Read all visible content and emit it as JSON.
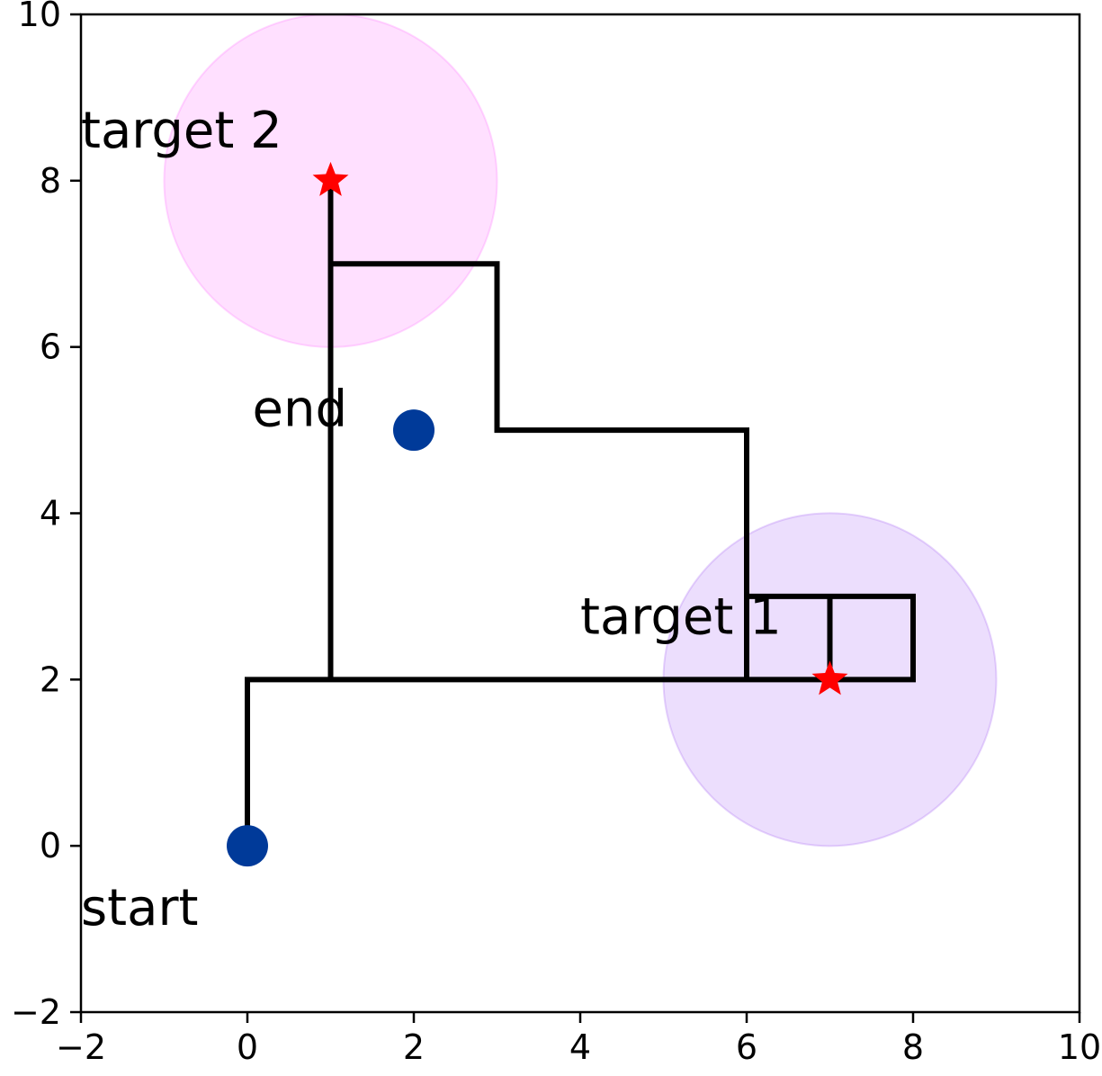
{
  "chart_data": {
    "type": "scatter",
    "title": "",
    "xlabel": "",
    "ylabel": "",
    "xlim": [
      -2,
      10
    ],
    "ylim": [
      -2,
      10
    ],
    "x_ticks": [
      -2,
      0,
      2,
      4,
      6,
      8,
      10
    ],
    "y_ticks": [
      -2,
      0,
      2,
      4,
      6,
      8,
      10
    ],
    "x_tick_labels": [
      "−2",
      "0",
      "2",
      "4",
      "6",
      "8",
      "10"
    ],
    "y_tick_labels": [
      "−2",
      "0",
      "2",
      "4",
      "6",
      "8",
      "10"
    ],
    "grid": false,
    "legend": "none",
    "regions": [
      {
        "cx": 1,
        "cy": 8,
        "r": 2,
        "color": "#ff66ff"
      },
      {
        "cx": 7,
        "cy": 2,
        "r": 2,
        "color": "#9f5cf5"
      }
    ],
    "path": {
      "color": "#000000",
      "x": [
        0,
        0,
        1,
        1,
        3,
        3,
        6,
        6,
        8,
        8,
        7,
        7,
        6,
        6,
        7,
        7,
        1,
        1
      ],
      "y": [
        0,
        2,
        2,
        7,
        7,
        5,
        5,
        2,
        2,
        3,
        3,
        2,
        2,
        3,
        3,
        2,
        2,
        8
      ]
    },
    "points": [
      {
        "x": 0,
        "y": 0,
        "label": "start",
        "color": "#003a99",
        "marker": "circle"
      },
      {
        "x": 2,
        "y": 5,
        "label": "end",
        "color": "#003a99",
        "marker": "circle"
      }
    ],
    "targets": [
      {
        "x": 7,
        "y": 2,
        "label": "target 1",
        "color": "#ff0000",
        "marker": "star"
      },
      {
        "x": 1,
        "y": 8,
        "label": "target 2",
        "color": "#ff0000",
        "marker": "star"
      }
    ],
    "annotations": [
      {
        "text": "start",
        "x": -2,
        "y": -0.95,
        "anchor": "start"
      },
      {
        "text": "end",
        "x": 1.2,
        "y": 5.05,
        "anchor": "end"
      },
      {
        "text": "target 1",
        "x": 4,
        "y": 2.55,
        "anchor": "start"
      },
      {
        "text": "target 2",
        "x": -2,
        "y": 8.4,
        "anchor": "start"
      }
    ]
  }
}
